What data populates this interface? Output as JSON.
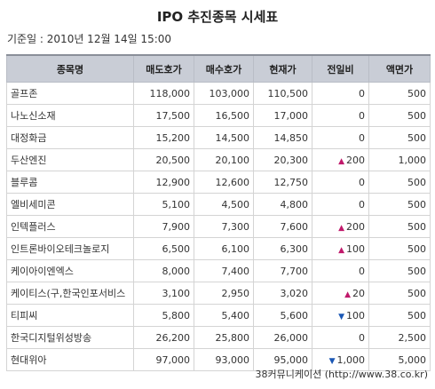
{
  "page": {
    "title": "IPO 추진종목 시세표",
    "base_date": "기준일 : 2010년 12월 14일 15:00",
    "footer": "38커뮤니케이션 (http://www.38.co.kr)"
  },
  "table": {
    "headers": [
      "종목명",
      "매도호가",
      "매수호가",
      "현재가",
      "전일비",
      "액면가"
    ],
    "rows": [
      {
        "name": "골프존",
        "ask": "118,000",
        "bid": "103,000",
        "price": "110,500",
        "change_dir": "",
        "change": "0",
        "par": "500"
      },
      {
        "name": "나노신소재",
        "ask": "17,500",
        "bid": "16,500",
        "price": "17,000",
        "change_dir": "",
        "change": "0",
        "par": "500"
      },
      {
        "name": "대정화금",
        "ask": "15,200",
        "bid": "14,500",
        "price": "14,850",
        "change_dir": "",
        "change": "0",
        "par": "500"
      },
      {
        "name": "두산엔진",
        "ask": "20,500",
        "bid": "20,100",
        "price": "20,300",
        "change_dir": "up",
        "change": "200",
        "par": "1,000"
      },
      {
        "name": "블루콤",
        "ask": "12,900",
        "bid": "12,600",
        "price": "12,750",
        "change_dir": "",
        "change": "0",
        "par": "500"
      },
      {
        "name": "엘비세미콘",
        "ask": "5,100",
        "bid": "4,500",
        "price": "4,800",
        "change_dir": "",
        "change": "0",
        "par": "500"
      },
      {
        "name": "인텍플러스",
        "ask": "7,900",
        "bid": "7,300",
        "price": "7,600",
        "change_dir": "up",
        "change": "200",
        "par": "500"
      },
      {
        "name": "인트론바이오테크놀로지",
        "ask": "6,500",
        "bid": "6,100",
        "price": "6,300",
        "change_dir": "up",
        "change": "100",
        "par": "500"
      },
      {
        "name": "케이아이엔엑스",
        "ask": "8,000",
        "bid": "7,400",
        "price": "7,700",
        "change_dir": "",
        "change": "0",
        "par": "500"
      },
      {
        "name": "케이티스(구,한국인포서비스",
        "ask": "3,100",
        "bid": "2,950",
        "price": "3,020",
        "change_dir": "up",
        "change": "20",
        "par": "500"
      },
      {
        "name": "티피씨",
        "ask": "5,800",
        "bid": "5,400",
        "price": "5,600",
        "change_dir": "down",
        "change": "100",
        "par": "500"
      },
      {
        "name": "한국디지털위성방송",
        "ask": "26,200",
        "bid": "25,800",
        "price": "26,000",
        "change_dir": "",
        "change": "0",
        "par": "2,500"
      },
      {
        "name": "현대위아",
        "ask": "97,000",
        "bid": "93,000",
        "price": "95,000",
        "change_dir": "down",
        "change": "1,000",
        "par": "5,000"
      }
    ]
  },
  "colors": {
    "up": "#c0196b",
    "down": "#1a57b5",
    "header_bg": "#c9cdd6"
  },
  "icons": {
    "up": "▲",
    "down": "▼"
  }
}
